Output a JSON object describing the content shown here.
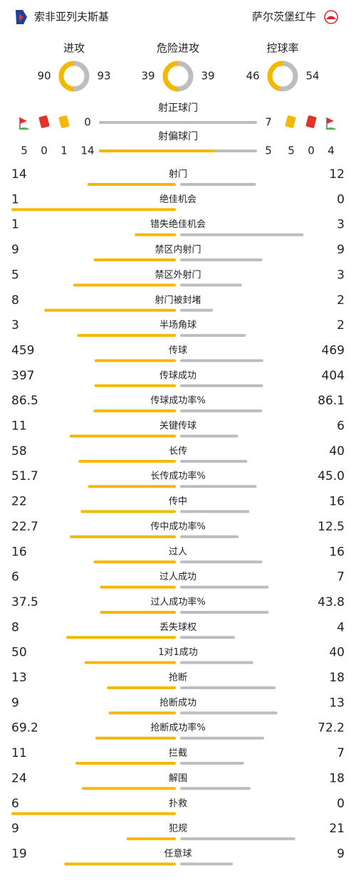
{
  "header": {
    "home": "索非亚列夫斯基",
    "away": "萨尔茨堡红牛"
  },
  "gauges": [
    {
      "label": "进攻",
      "home": "90",
      "away": "93"
    },
    {
      "label": "危险进攻",
      "home": "39",
      "away": "39"
    },
    {
      "label": "控球率",
      "home": "46",
      "away": "54"
    }
  ],
  "shots_on": {
    "label": "射正球门",
    "home": "0",
    "away": "7"
  },
  "shots_off": {
    "label": "射偏球门",
    "home": "14",
    "away": "5"
  },
  "home_counts": [
    "5",
    "0",
    "1"
  ],
  "away_counts": [
    "5",
    "0",
    "4"
  ],
  "stats": [
    {
      "label": "射门",
      "home": "14",
      "away": "12"
    },
    {
      "label": "绝佳机会",
      "home": "1",
      "away": "0"
    },
    {
      "label": "错失绝佳机会",
      "home": "1",
      "away": "3"
    },
    {
      "label": "禁区内射门",
      "home": "9",
      "away": "9"
    },
    {
      "label": "禁区外射门",
      "home": "5",
      "away": "3"
    },
    {
      "label": "射门被封堵",
      "home": "8",
      "away": "2"
    },
    {
      "label": "半场角球",
      "home": "3",
      "away": "2"
    },
    {
      "label": "传球",
      "home": "459",
      "away": "469"
    },
    {
      "label": "传球成功",
      "home": "397",
      "away": "404"
    },
    {
      "label": "传球成功率%",
      "home": "86.5",
      "away": "86.1"
    },
    {
      "label": "关键传球",
      "home": "11",
      "away": "6"
    },
    {
      "label": "长传",
      "home": "58",
      "away": "40"
    },
    {
      "label": "长传成功率%",
      "home": "51.7",
      "away": "45.0"
    },
    {
      "label": "传中",
      "home": "22",
      "away": "16"
    },
    {
      "label": "传中成功率%",
      "home": "22.7",
      "away": "12.5"
    },
    {
      "label": "过人",
      "home": "16",
      "away": "16"
    },
    {
      "label": "过人成功",
      "home": "6",
      "away": "7"
    },
    {
      "label": "过人成功率%",
      "home": "37.5",
      "away": "43.8"
    },
    {
      "label": "丢失球权",
      "home": "8",
      "away": "4"
    },
    {
      "label": "1对1成功",
      "home": "50",
      "away": "40"
    },
    {
      "label": "抢断",
      "home": "13",
      "away": "18"
    },
    {
      "label": "抢断成功",
      "home": "9",
      "away": "13"
    },
    {
      "label": "抢断成功率%",
      "home": "69.2",
      "away": "72.2"
    },
    {
      "label": "拦截",
      "home": "11",
      "away": "7"
    },
    {
      "label": "解围",
      "home": "24",
      "away": "18"
    },
    {
      "label": "扑救",
      "home": "6",
      "away": "0"
    },
    {
      "label": "犯规",
      "home": "9",
      "away": "21"
    },
    {
      "label": "任意球",
      "home": "19",
      "away": "9"
    }
  ]
}
